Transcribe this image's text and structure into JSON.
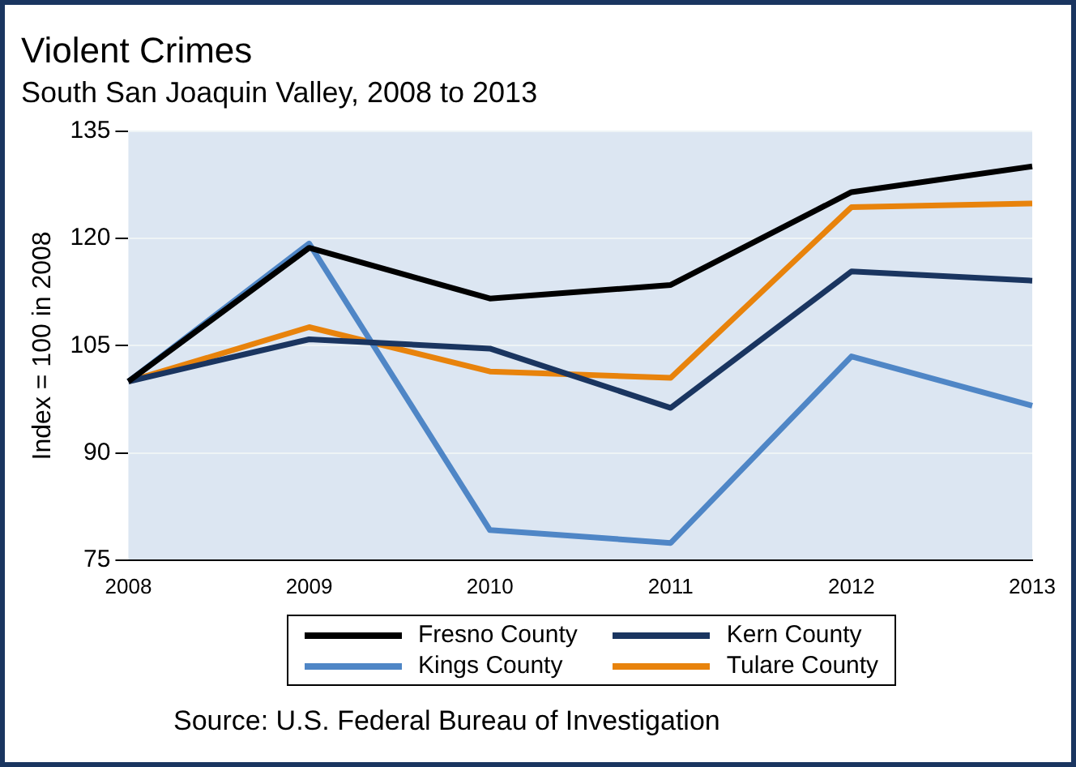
{
  "chart_data": {
    "type": "line",
    "title": "Violent Crimes",
    "subtitle": "South San Joaquin Valley, 2008 to 2013",
    "ylabel": "Index = 100 in 2008",
    "categories": [
      "2008",
      "2009",
      "2010",
      "2011",
      "2012",
      "2013"
    ],
    "series": [
      {
        "name": "Fresno County",
        "color": "#000000",
        "values": [
          100,
          118.7,
          111.6,
          113.5,
          126.5,
          130.1
        ]
      },
      {
        "name": "Kern County",
        "color": "#1a3560",
        "values": [
          100,
          105.9,
          104.6,
          96.3,
          115.4,
          114.1
        ]
      },
      {
        "name": "Kings County",
        "color": "#4f86c6",
        "values": [
          100,
          119.3,
          79.2,
          77.4,
          103.5,
          96.6
        ]
      },
      {
        "name": "Tulare County",
        "color": "#e8830c",
        "values": [
          100,
          107.6,
          101.4,
          100.5,
          124.4,
          124.9
        ]
      }
    ],
    "ylim": [
      75,
      135
    ],
    "yticks": [
      75,
      90,
      105,
      120,
      135
    ],
    "grid": "y",
    "legend": "bottom",
    "marker": "none",
    "line_style": "solid",
    "annotations": [
      "Source: U.S. Federal Bureau of Investigation"
    ]
  }
}
